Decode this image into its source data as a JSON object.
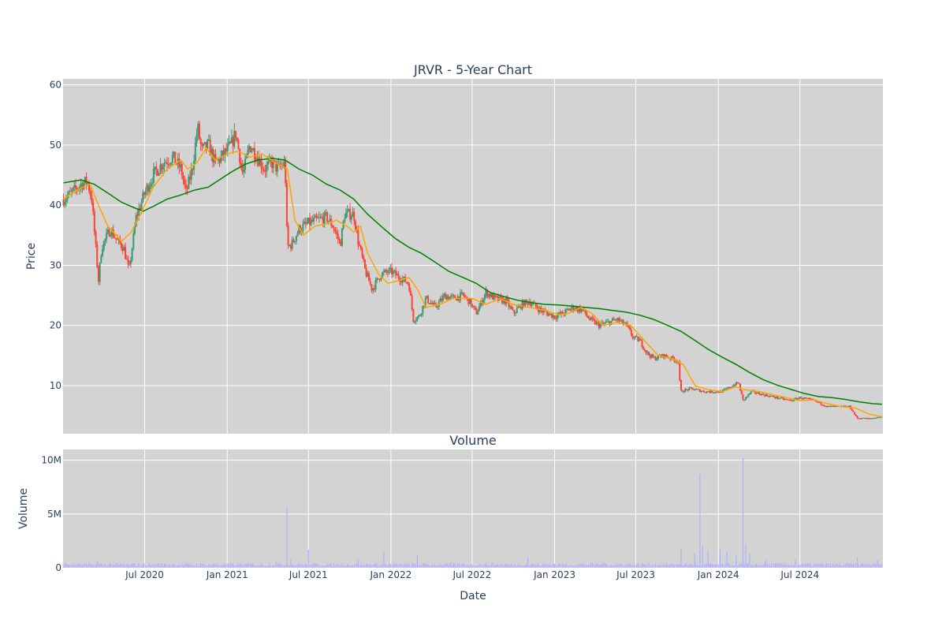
{
  "chart_data": [
    {
      "type": "candlestick",
      "title": "JRVR - 5-Year Chart",
      "ylabel": "Price",
      "ylim": [
        2,
        61
      ],
      "yticks": [
        10,
        20,
        30,
        40,
        50,
        60
      ],
      "grid": true,
      "legend": "none",
      "colors": {
        "increasing": "#3d9970",
        "decreasing": "#ff4136",
        "ma_short": "#ffa500",
        "ma_long": "#008000",
        "plot_bg": "#d3d3d3"
      },
      "close_path": [
        [
          "2020-01-02",
          41
        ],
        [
          "2020-01-20",
          42
        ],
        [
          "2020-02-10",
          43.5
        ],
        [
          "2020-02-24",
          44
        ],
        [
          "2020-03-05",
          41
        ],
        [
          "2020-03-16",
          31
        ],
        [
          "2020-03-20",
          27.5
        ],
        [
          "2020-03-27",
          33
        ],
        [
          "2020-04-15",
          36
        ],
        [
          "2020-05-01",
          34
        ],
        [
          "2020-05-15",
          33
        ],
        [
          "2020-05-27",
          29
        ],
        [
          "2020-06-12",
          38
        ],
        [
          "2020-07-01",
          42
        ],
        [
          "2020-07-20",
          45
        ],
        [
          "2020-08-10",
          47
        ],
        [
          "2020-09-01",
          48
        ],
        [
          "2020-09-20",
          46
        ],
        [
          "2020-10-01",
          42
        ],
        [
          "2020-10-15",
          46
        ],
        [
          "2020-10-27",
          53
        ],
        [
          "2020-11-05",
          49
        ],
        [
          "2020-11-20",
          50
        ],
        [
          "2020-12-05",
          47
        ],
        [
          "2020-12-20",
          48
        ],
        [
          "2021-01-10",
          50
        ],
        [
          "2021-01-20",
          52
        ],
        [
          "2021-02-05",
          45
        ],
        [
          "2021-02-20",
          50
        ],
        [
          "2021-03-10",
          48
        ],
        [
          "2021-03-25",
          46
        ],
        [
          "2021-04-10",
          47
        ],
        [
          "2021-04-25",
          46
        ],
        [
          "2021-05-10",
          47
        ],
        [
          "2021-05-15",
          33
        ],
        [
          "2021-05-25",
          33.5
        ],
        [
          "2021-06-10",
          36
        ],
        [
          "2021-07-01",
          37
        ],
        [
          "2021-07-20",
          37.5
        ],
        [
          "2021-08-10",
          38
        ],
        [
          "2021-08-25",
          36.5
        ],
        [
          "2021-09-10",
          33.5
        ],
        [
          "2021-09-20",
          38.5
        ],
        [
          "2021-10-10",
          38.5
        ],
        [
          "2021-10-20",
          34
        ],
        [
          "2021-11-05",
          29
        ],
        [
          "2021-11-20",
          26
        ],
        [
          "2021-12-10",
          28.5
        ],
        [
          "2022-01-01",
          29
        ],
        [
          "2022-01-20",
          28
        ],
        [
          "2022-02-10",
          27
        ],
        [
          "2022-02-20",
          21
        ],
        [
          "2022-03-05",
          21.5
        ],
        [
          "2022-03-20",
          24.5
        ],
        [
          "2022-04-10",
          23
        ],
        [
          "2022-05-01",
          25
        ],
        [
          "2022-05-20",
          24.5
        ],
        [
          "2022-06-10",
          25
        ],
        [
          "2022-06-25",
          24
        ],
        [
          "2022-07-10",
          22
        ],
        [
          "2022-08-01",
          25.5
        ],
        [
          "2022-08-20",
          24.5
        ],
        [
          "2022-09-15",
          24
        ],
        [
          "2022-10-01",
          22
        ],
        [
          "2022-10-20",
          23.5
        ],
        [
          "2022-11-05",
          24
        ],
        [
          "2022-12-01",
          22.5
        ],
        [
          "2023-01-01",
          21.5
        ],
        [
          "2023-01-20",
          22
        ],
        [
          "2023-02-10",
          23
        ],
        [
          "2023-03-05",
          22.5
        ],
        [
          "2023-03-20",
          21
        ],
        [
          "2023-04-10",
          20
        ],
        [
          "2023-05-01",
          20.5
        ],
        [
          "2023-05-20",
          21
        ],
        [
          "2023-06-10",
          20
        ],
        [
          "2023-06-25",
          18
        ],
        [
          "2023-07-10",
          17.5
        ],
        [
          "2023-07-25",
          15.5
        ],
        [
          "2023-08-10",
          14.5
        ],
        [
          "2023-09-01",
          15
        ],
        [
          "2023-09-20",
          14.5
        ],
        [
          "2023-10-05",
          14
        ],
        [
          "2023-10-08",
          9
        ],
        [
          "2023-11-01",
          9.5
        ],
        [
          "2023-12-01",
          9
        ],
        [
          "2024-01-10",
          9
        ],
        [
          "2024-02-01",
          10
        ],
        [
          "2024-02-15",
          10.5
        ],
        [
          "2024-02-25",
          7.5
        ],
        [
          "2024-03-15",
          9
        ],
        [
          "2024-04-10",
          8.5
        ],
        [
          "2024-05-10",
          8
        ],
        [
          "2024-06-10",
          7.5
        ],
        [
          "2024-07-01",
          8
        ],
        [
          "2024-08-01",
          7.5
        ],
        [
          "2024-09-01",
          6.5
        ],
        [
          "2024-10-01",
          6.5
        ],
        [
          "2024-10-20",
          6.5
        ],
        [
          "2024-11-05",
          4.6
        ],
        [
          "2024-12-01",
          4.5
        ],
        [
          "2024-12-31",
          4.8
        ]
      ],
      "ma_short_path": [
        [
          "2020-01-02",
          41
        ],
        [
          "2020-02-01",
          42.5
        ],
        [
          "2020-03-01",
          43.5
        ],
        [
          "2020-03-20",
          40
        ],
        [
          "2020-04-10",
          36.5
        ],
        [
          "2020-05-10",
          34
        ],
        [
          "2020-06-01",
          35.5
        ],
        [
          "2020-06-25",
          39
        ],
        [
          "2020-07-20",
          43
        ],
        [
          "2020-08-20",
          46
        ],
        [
          "2020-09-20",
          47.5
        ],
        [
          "2020-10-05",
          46
        ],
        [
          "2020-10-25",
          47
        ],
        [
          "2020-11-15",
          49.5
        ],
        [
          "2020-12-05",
          47.5
        ],
        [
          "2021-01-01",
          48.5
        ],
        [
          "2021-01-25",
          49
        ],
        [
          "2021-02-20",
          48
        ],
        [
          "2021-03-20",
          48.5
        ],
        [
          "2021-04-20",
          47
        ],
        [
          "2021-05-15",
          46
        ],
        [
          "2021-06-01",
          37.5
        ],
        [
          "2021-06-20",
          35
        ],
        [
          "2021-07-15",
          36.5
        ],
        [
          "2021-08-15",
          37
        ],
        [
          "2021-09-01",
          37.5
        ],
        [
          "2021-09-25",
          36.5
        ],
        [
          "2021-10-10",
          35.5
        ],
        [
          "2021-10-25",
          36.5
        ],
        [
          "2021-11-10",
          32
        ],
        [
          "2021-12-05",
          28.5
        ],
        [
          "2021-12-25",
          27
        ],
        [
          "2022-01-20",
          27.5
        ],
        [
          "2022-02-10",
          28
        ],
        [
          "2022-03-01",
          26
        ],
        [
          "2022-03-20",
          23
        ],
        [
          "2022-04-20",
          23.5
        ],
        [
          "2022-05-20",
          24.5
        ],
        [
          "2022-07-01",
          24.5
        ],
        [
          "2022-08-01",
          23.5
        ],
        [
          "2022-09-01",
          24.5
        ],
        [
          "2022-10-01",
          23.5
        ],
        [
          "2022-11-05",
          23
        ],
        [
          "2022-12-10",
          22.5
        ],
        [
          "2023-01-10",
          21.8
        ],
        [
          "2023-02-01",
          22
        ],
        [
          "2023-03-01",
          23
        ],
        [
          "2023-03-25",
          22
        ],
        [
          "2023-04-20",
          20
        ],
        [
          "2023-05-20",
          20.5
        ],
        [
          "2023-06-20",
          20
        ],
        [
          "2023-07-20",
          17.5
        ],
        [
          "2023-08-20",
          15
        ],
        [
          "2023-09-20",
          14.5
        ],
        [
          "2023-10-15",
          13.5
        ],
        [
          "2023-11-10",
          10
        ],
        [
          "2023-12-10",
          9.3
        ],
        [
          "2024-01-10",
          9
        ],
        [
          "2024-02-10",
          9.8
        ],
        [
          "2024-03-01",
          9.3
        ],
        [
          "2024-04-01",
          9
        ],
        [
          "2024-05-01",
          8.5
        ],
        [
          "2024-06-01",
          8
        ],
        [
          "2024-07-01",
          7.5
        ],
        [
          "2024-08-01",
          7.6
        ],
        [
          "2024-09-01",
          7
        ],
        [
          "2024-10-01",
          6.5
        ],
        [
          "2024-11-01",
          6.3
        ],
        [
          "2024-12-01",
          5.3
        ],
        [
          "2024-12-31",
          4.8
        ]
      ],
      "ma_long_path": [
        [
          "2020-01-02",
          43.7
        ],
        [
          "2020-02-10",
          44.2
        ],
        [
          "2020-03-10",
          43.5
        ],
        [
          "2020-04-10",
          42
        ],
        [
          "2020-05-10",
          40.5
        ],
        [
          "2020-06-10",
          39.5
        ],
        [
          "2020-06-28",
          39
        ],
        [
          "2020-07-20",
          39.8
        ],
        [
          "2020-08-20",
          41
        ],
        [
          "2020-09-20",
          41.7
        ],
        [
          "2020-10-20",
          42.5
        ],
        [
          "2020-11-20",
          43
        ],
        [
          "2020-12-10",
          44
        ],
        [
          "2021-01-10",
          45.5
        ],
        [
          "2021-02-10",
          46.8
        ],
        [
          "2021-03-10",
          47.5
        ],
        [
          "2021-04-10",
          47.8
        ],
        [
          "2021-05-10",
          47.5
        ],
        [
          "2021-06-10",
          46
        ],
        [
          "2021-07-10",
          45
        ],
        [
          "2021-08-10",
          43.5
        ],
        [
          "2021-09-10",
          42.5
        ],
        [
          "2021-10-10",
          41
        ],
        [
          "2021-11-10",
          38.5
        ],
        [
          "2021-12-10",
          36.5
        ],
        [
          "2022-01-10",
          34.5
        ],
        [
          "2022-02-10",
          33
        ],
        [
          "2022-03-10",
          32
        ],
        [
          "2022-04-10",
          30.5
        ],
        [
          "2022-05-10",
          29
        ],
        [
          "2022-06-10",
          28
        ],
        [
          "2022-07-10",
          27
        ],
        [
          "2022-08-10",
          25.5
        ],
        [
          "2022-09-10",
          24.8
        ],
        [
          "2022-10-10",
          24.2
        ],
        [
          "2022-11-10",
          23.8
        ],
        [
          "2022-12-10",
          23.5
        ],
        [
          "2023-01-10",
          23.4
        ],
        [
          "2023-02-10",
          23.2
        ],
        [
          "2023-03-10",
          23
        ],
        [
          "2023-04-10",
          22.8
        ],
        [
          "2023-05-10",
          22.5
        ],
        [
          "2023-06-10",
          22.2
        ],
        [
          "2023-07-10",
          21.7
        ],
        [
          "2023-08-10",
          21
        ],
        [
          "2023-09-10",
          20
        ],
        [
          "2023-10-10",
          19
        ],
        [
          "2023-11-10",
          17.5
        ],
        [
          "2023-12-10",
          16
        ],
        [
          "2024-01-10",
          14.7
        ],
        [
          "2024-02-10",
          13.5
        ],
        [
          "2024-03-10",
          12.2
        ],
        [
          "2024-04-10",
          11
        ],
        [
          "2024-05-10",
          10.1
        ],
        [
          "2024-06-10",
          9.4
        ],
        [
          "2024-07-10",
          8.7
        ],
        [
          "2024-08-10",
          8.2
        ],
        [
          "2024-09-10",
          8
        ],
        [
          "2024-10-10",
          7.7
        ],
        [
          "2024-11-10",
          7.3
        ],
        [
          "2024-12-10",
          7
        ],
        [
          "2024-12-31",
          6.9
        ]
      ]
    },
    {
      "type": "bar",
      "title": "Volume",
      "ylabel": "Volume",
      "xlabel": "Date",
      "ylim": [
        0,
        11000000
      ],
      "yticks": [
        0,
        5000000,
        10000000
      ],
      "ytick_labels": [
        "0",
        "5M",
        "10M"
      ],
      "xticks": [
        "2020-07-01",
        "2021-01-01",
        "2021-07-01",
        "2022-01-01",
        "2022-07-01",
        "2023-01-01",
        "2023-07-01",
        "2024-01-01",
        "2024-07-01"
      ],
      "xtick_labels": [
        "Jul 2020",
        "Jan 2021",
        "Jul 2021",
        "Jan 2022",
        "Jul 2022",
        "Jan 2023",
        "Jul 2023",
        "Jan 2024",
        "Jul 2024"
      ],
      "xlim": [
        "2020-01-01",
        "2025-01-02"
      ],
      "bar_color": "#b0b0ff",
      "base_volume": 300000,
      "spikes": [
        [
          "2020-03-16",
          600000
        ],
        [
          "2020-12-10",
          400000
        ],
        [
          "2021-04-20",
          600000
        ],
        [
          "2021-05-14",
          5700000
        ],
        [
          "2021-05-24",
          800000
        ],
        [
          "2021-06-30",
          1700000
        ],
        [
          "2021-10-20",
          800000
        ],
        [
          "2021-12-15",
          1500000
        ],
        [
          "2022-03-01",
          1200000
        ],
        [
          "2022-05-15",
          500000
        ],
        [
          "2022-11-01",
          1000000
        ],
        [
          "2023-04-20",
          500000
        ],
        [
          "2023-10-09",
          1700000
        ],
        [
          "2023-11-10",
          1300000
        ],
        [
          "2023-11-22",
          8700000
        ],
        [
          "2023-11-28",
          2000000
        ],
        [
          "2023-12-10",
          1600000
        ],
        [
          "2024-01-05",
          1700000
        ],
        [
          "2024-01-20",
          1500000
        ],
        [
          "2024-02-10",
          1200000
        ],
        [
          "2024-02-26",
          10200000
        ],
        [
          "2024-03-01",
          2200000
        ],
        [
          "2024-03-10",
          1300000
        ],
        [
          "2024-04-15",
          700000
        ],
        [
          "2024-06-20",
          800000
        ],
        [
          "2024-11-05",
          1000000
        ],
        [
          "2024-12-20",
          700000
        ]
      ]
    }
  ]
}
